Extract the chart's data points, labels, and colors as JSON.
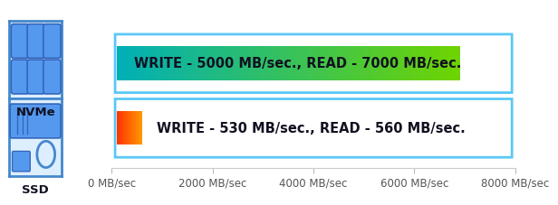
{
  "nvme_read": 7000,
  "ssd_read": 560,
  "xmax": 8000,
  "xticks": [
    0,
    2000,
    4000,
    6000,
    8000
  ],
  "xtick_labels": [
    "0 MB/sec",
    "2000 MB/sec",
    "4000 MB/sec",
    "6000 MB/sec",
    "8000 MB/sec"
  ],
  "nvme_label": "WRITE - 5000 MB/sec., READ - 7000 MB/sec.",
  "ssd_label": "WRITE - 530 MB/sec., READ - 560 MB/sec.",
  "nvme_grad_start": "#00b0b8",
  "nvme_grad_end": "#6fd400",
  "ssd_grad_start": "#ff3300",
  "ssd_grad_end": "#ff9900",
  "border_color": "#5bc8f5",
  "label_nvme": "NVMe",
  "label_ssd": "SSD",
  "background_color": "#ffffff",
  "text_color": "#111122",
  "font_size_bar": 10.5,
  "font_size_axis": 8.5
}
